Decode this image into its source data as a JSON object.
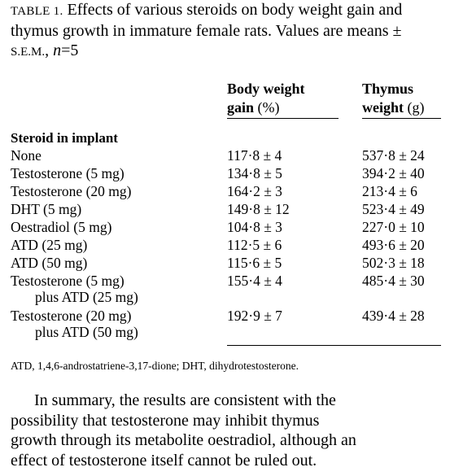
{
  "table": {
    "label": "TABLE 1.",
    "caption_pre": "Effects of various steroids on body weight gain and thymus growth in immature female rats. Values are means ± ",
    "sem_label": "S.E.M.",
    "caption_sep": ", ",
    "n_var": "n",
    "n_value": "=5",
    "columns": [
      {
        "line1": "Body weight",
        "line2_word": "gain",
        "unit": "(%)"
      },
      {
        "line1": "Thymus",
        "line2_word": "weight",
        "unit": "(g)"
      }
    ],
    "section_label": "Steroid in implant",
    "rows": [
      {
        "name": "None",
        "gain": "117·8 ± 4",
        "thymus": "537·8 ± 24"
      },
      {
        "name": "Testosterone (5 mg)",
        "gain": "134·8 ± 5",
        "thymus": "394·2 ± 40"
      },
      {
        "name": "Testosterone (20 mg)",
        "gain": "164·2 ± 3",
        "thymus": "213·4 ± 6"
      },
      {
        "name": "DHT (5 mg)",
        "gain": "149·8 ± 12",
        "thymus": "523·4 ± 49"
      },
      {
        "name": "Oestradiol (5 mg)",
        "gain": "104·8 ± 3",
        "thymus": "227·0 ± 10"
      },
      {
        "name": "ATD (25 mg)",
        "gain": "112·5 ± 6",
        "thymus": "493·6 ± 20"
      },
      {
        "name": "ATD (50 mg)",
        "gain": "115·6 ± 5",
        "thymus": "502·3 ± 18"
      },
      {
        "name": "Testosterone (5 mg)",
        "name2": "plus ATD (25 mg)",
        "gain": "155·4 ± 4",
        "thymus": "485·4 ± 30"
      },
      {
        "name": "Testosterone (20 mg)",
        "name2": "plus ATD (50 mg)",
        "gain": "192·9 ± 7",
        "thymus": "439·4 ± 28"
      }
    ],
    "footnote": "ATD, 1,4,6-androstatriene-3,17-dione; DHT, dihydrotestosterone."
  },
  "body_text": {
    "lines": [
      "In summary, the results are consistent with the",
      "possibility that testosterone may inhibit thymus",
      "growth through its metabolite oestradiol, although an",
      "effect of testosterone itself cannot be ruled out."
    ]
  }
}
